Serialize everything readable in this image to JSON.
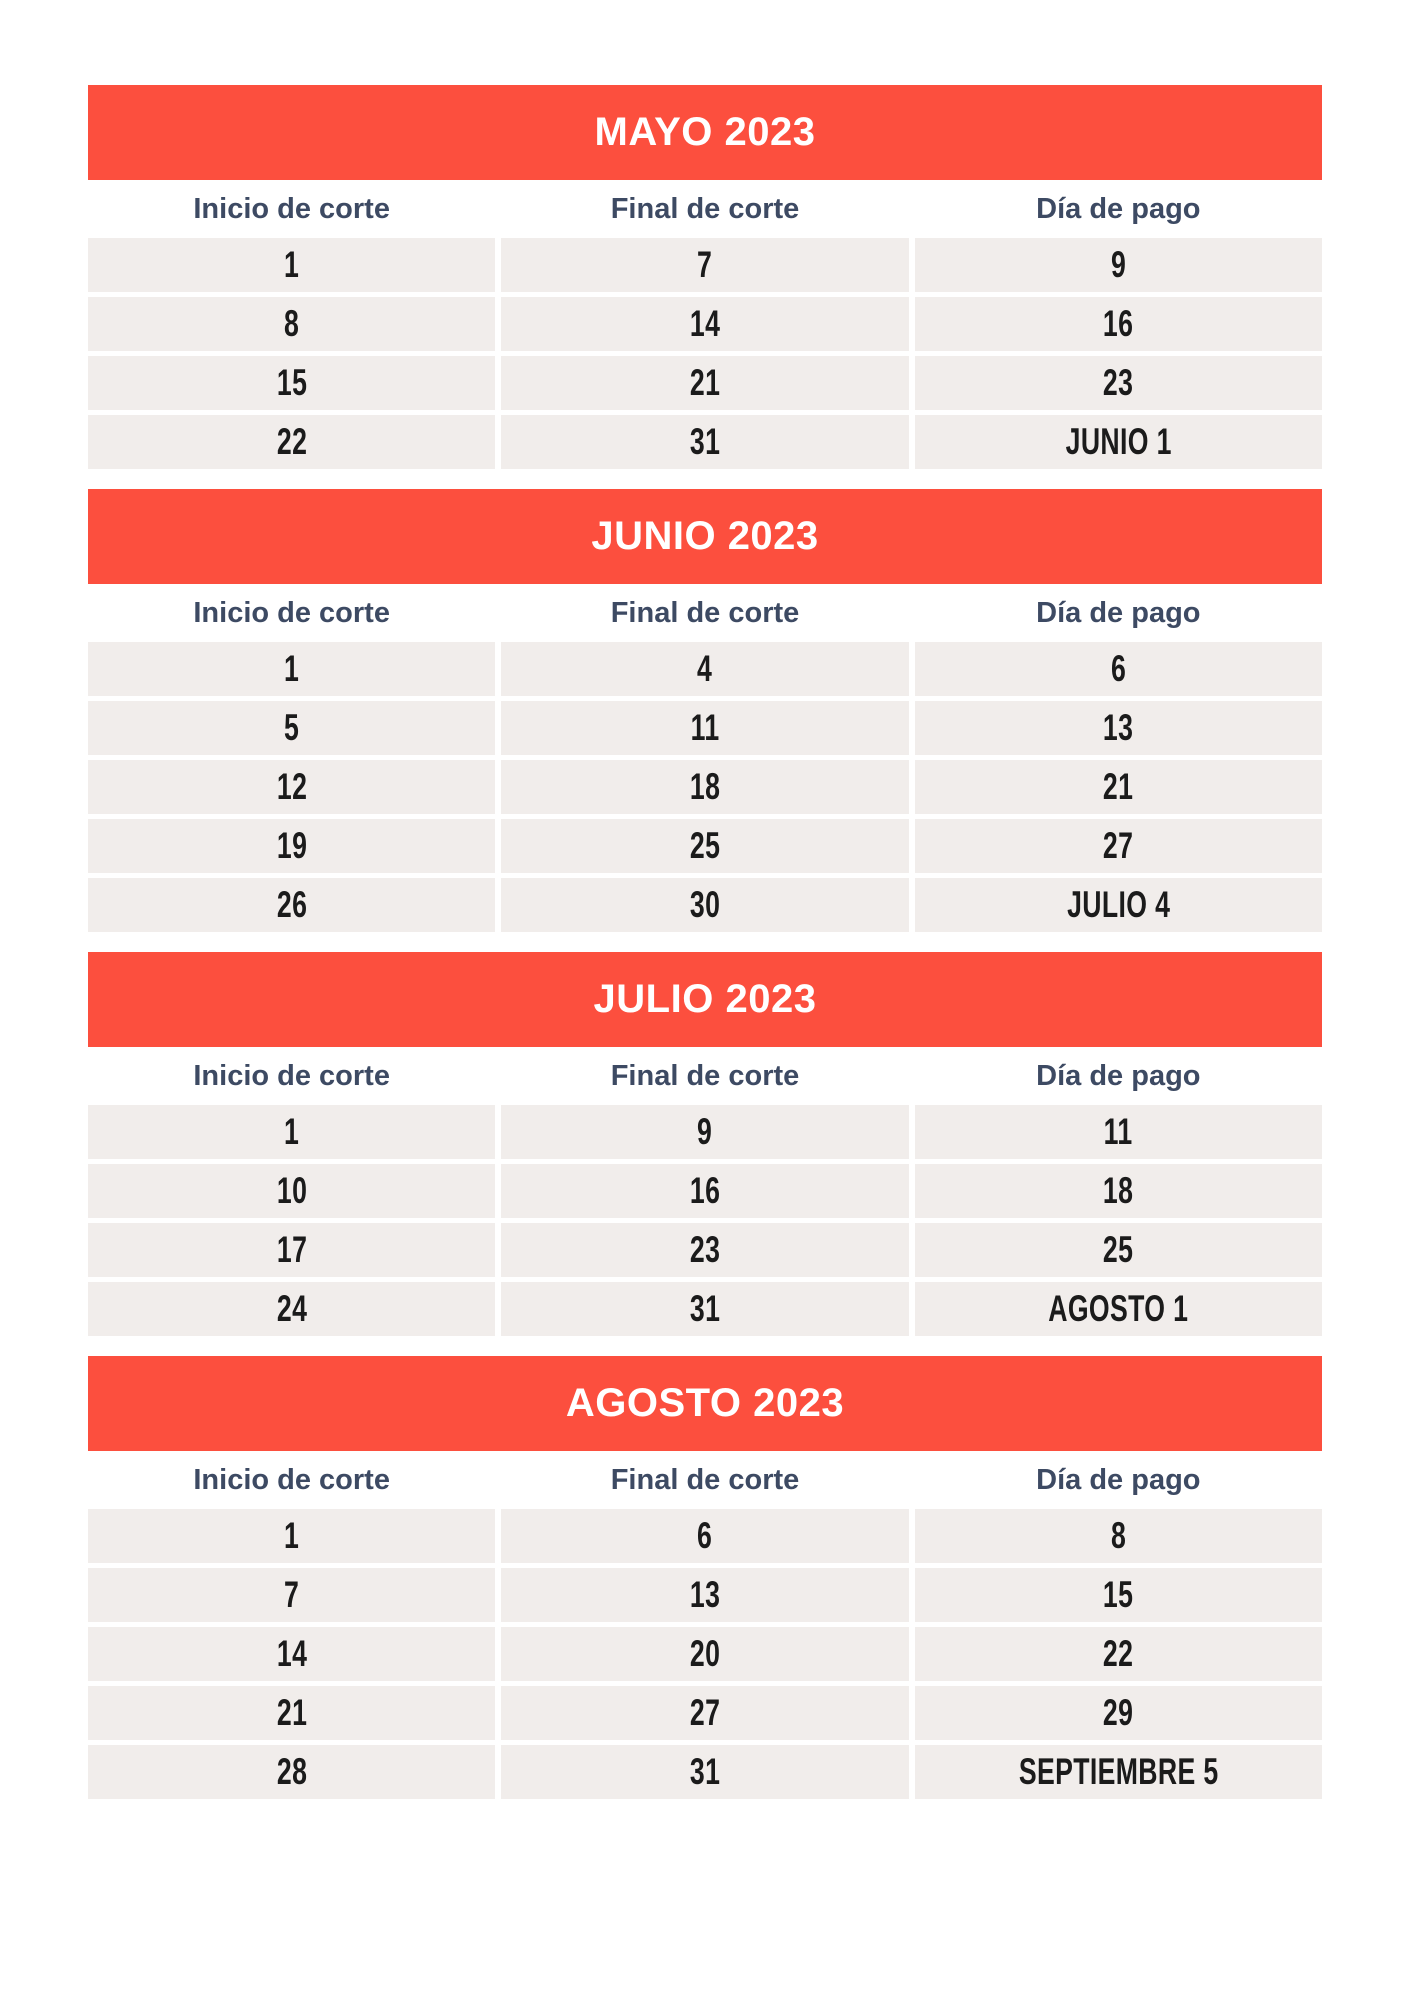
{
  "theme": {
    "banner_color": "#FC4F3E",
    "banner_text_color": "#FFFFFF",
    "header_text_color": "#3D4A63",
    "cell_background_color": "#F1EDEB",
    "cell_text_color": "#1B1B1B",
    "page_background_color": "#FFFFFF"
  },
  "columns": [
    "Inicio de corte",
    "Final de corte",
    "Día de pago"
  ],
  "tables": [
    {
      "title": "MAYO 2023",
      "rows": [
        [
          "1",
          "7",
          "9"
        ],
        [
          "8",
          "14",
          "16"
        ],
        [
          "15",
          "21",
          "23"
        ],
        [
          "22",
          "31",
          "JUNIO 1"
        ]
      ]
    },
    {
      "title": "JUNIO 2023",
      "rows": [
        [
          "1",
          "4",
          "6"
        ],
        [
          "5",
          "11",
          "13"
        ],
        [
          "12",
          "18",
          "21"
        ],
        [
          "19",
          "25",
          "27"
        ],
        [
          "26",
          "30",
          "JULIO 4"
        ]
      ]
    },
    {
      "title": "JULIO 2023",
      "rows": [
        [
          "1",
          "9",
          "11"
        ],
        [
          "10",
          "16",
          "18"
        ],
        [
          "17",
          "23",
          "25"
        ],
        [
          "24",
          "31",
          "AGOSTO 1"
        ]
      ]
    },
    {
      "title": "AGOSTO 2023",
      "rows": [
        [
          "1",
          "6",
          "8"
        ],
        [
          "7",
          "13",
          "15"
        ],
        [
          "14",
          "20",
          "22"
        ],
        [
          "21",
          "27",
          "29"
        ],
        [
          "28",
          "31",
          "SEPTIEMBRE 5"
        ]
      ]
    }
  ]
}
